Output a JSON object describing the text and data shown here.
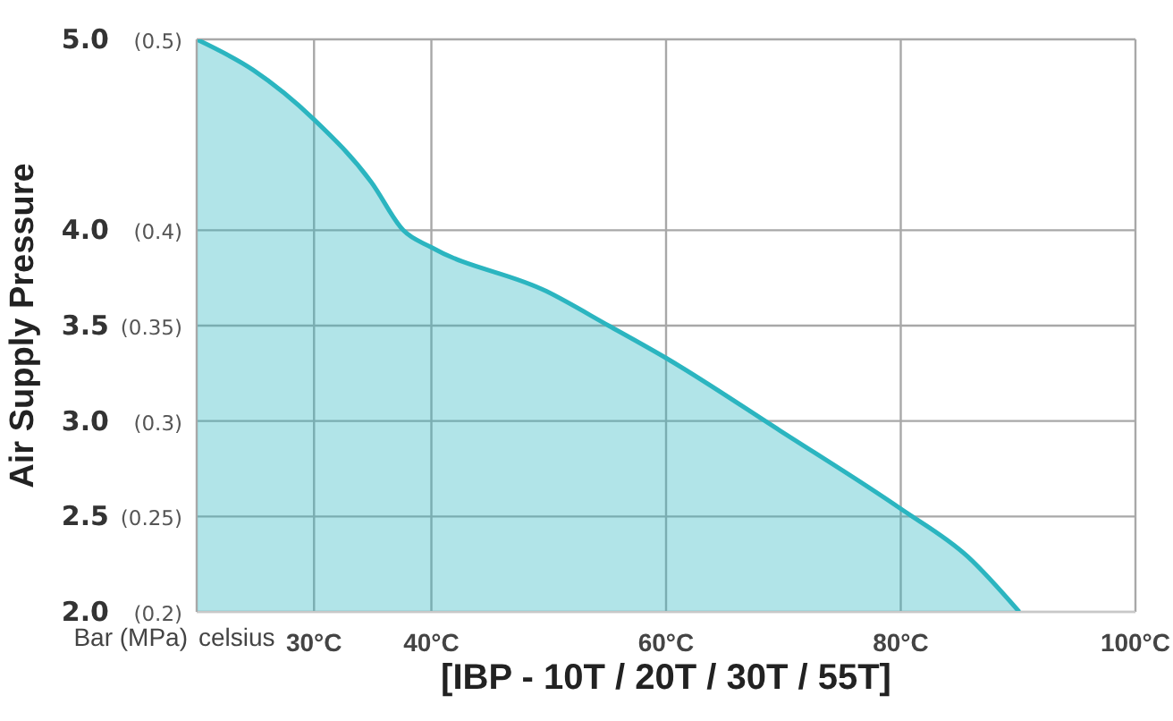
{
  "chart_data": {
    "type": "area",
    "xlabel": "[IBP - 10T / 20T / 30T / 55T]",
    "ylabel": "Air Supply Pressure",
    "annotations": [
      "Bar (MPa)",
      "celsius"
    ],
    "x": [
      20,
      24.8,
      30,
      34.9,
      37.6,
      40,
      49.8,
      55.1,
      60,
      69.7,
      80,
      85.7,
      90.1
    ],
    "series": [
      {
        "color": "#2bb5c0",
        "values": [
          5.0,
          4.84,
          4.58,
          4.25,
          4.0,
          3.91,
          3.68,
          3.5,
          3.33,
          2.95,
          2.54,
          2.29,
          2.0
        ]
      }
    ],
    "xlim": [
      20,
      100
    ],
    "xticks": [
      {
        "value": 30,
        "label": "30°C"
      },
      {
        "value": 40,
        "label": "40°C"
      },
      {
        "value": 60,
        "label": "60°C"
      },
      {
        "value": 80,
        "label": "80°C"
      },
      {
        "value": 100,
        "label": "100°C"
      }
    ],
    "ylim": [
      2,
      5
    ],
    "yticks": [
      {
        "value": 2,
        "label": "2.0"
      },
      {
        "value": 2.5,
        "label": "2.5"
      },
      {
        "value": 3,
        "label": "3.0"
      },
      {
        "value": 3.5,
        "label": "3.5"
      },
      {
        "value": 4,
        "label": "4.0"
      },
      {
        "value": 5,
        "label": "5.0"
      }
    ],
    "y2lim": [
      0.2,
      0.5
    ],
    "y2ticks": [
      {
        "value": 0.2,
        "label": "(0.2)"
      },
      {
        "value": 0.25,
        "label": "(0.25)"
      },
      {
        "value": 0.3,
        "label": "(0.3)"
      },
      {
        "value": 0.35,
        "label": "(0.35)"
      },
      {
        "value": 0.4,
        "label": "(0.4)"
      },
      {
        "value": 0.5,
        "label": "(0.5)"
      }
    ],
    "grid": true,
    "legend": false,
    "marker": "none",
    "line_style": "solid"
  }
}
